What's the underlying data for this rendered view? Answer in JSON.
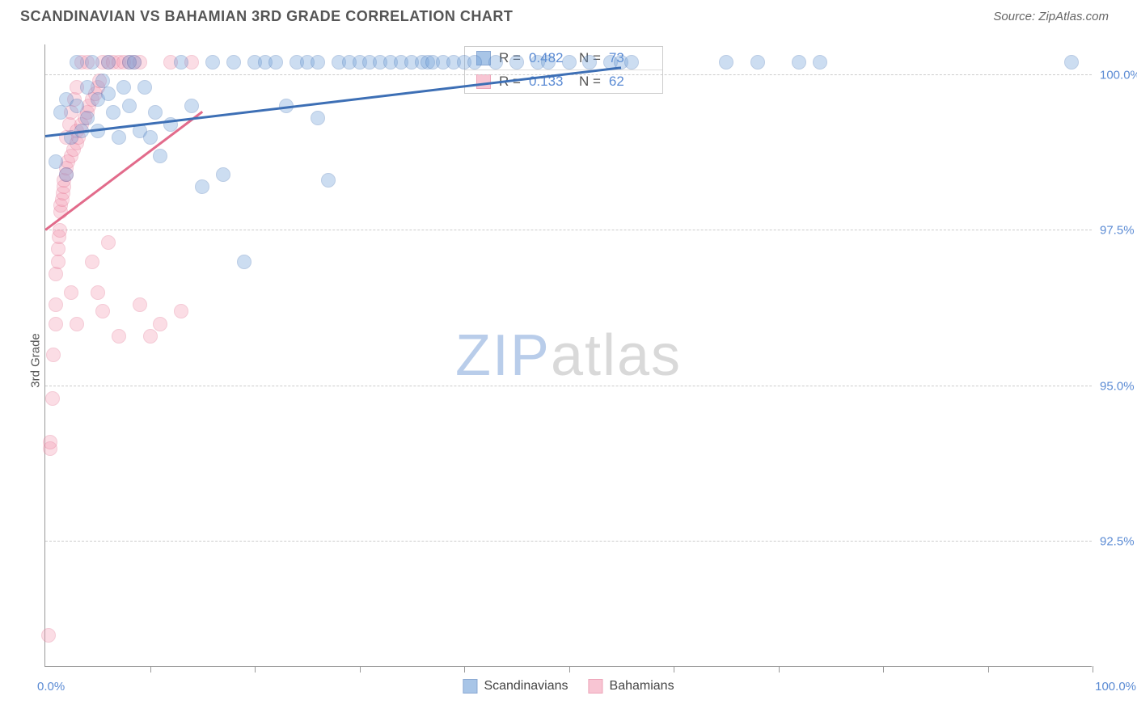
{
  "title": "SCANDINAVIAN VS BAHAMIAN 3RD GRADE CORRELATION CHART",
  "source_label": "Source: ",
  "source_value": "ZipAtlas.com",
  "ylabel": "3rd Grade",
  "watermark_a": "ZIP",
  "watermark_b": "atlas",
  "watermark_color_a": "#b9cdea",
  "watermark_color_b": "#d9d9d9",
  "chart": {
    "type": "scatter",
    "xlim": [
      0,
      100
    ],
    "ylim": [
      90.5,
      100.5
    ],
    "xaxis_min_label": "0.0%",
    "xaxis_max_label": "100.0%",
    "yticks": [
      92.5,
      95.0,
      97.5,
      100.0
    ],
    "ytick_labels": [
      "92.5%",
      "95.0%",
      "97.5%",
      "100.0%"
    ],
    "xticks": [
      10,
      20,
      30,
      40,
      50,
      60,
      70,
      80,
      90,
      100
    ],
    "grid_color": "#cccccc",
    "background": "#ffffff",
    "marker_radius": 9,
    "marker_opacity": 0.35,
    "series": [
      {
        "name": "Scandinavians",
        "label": "Scandinavians",
        "fill": "#6f9fd8",
        "stroke": "#3d6fb5",
        "R": "0.482",
        "N": "73",
        "trend": {
          "x1": 0,
          "y1": 99.0,
          "x2": 55,
          "y2": 100.1
        },
        "points": [
          [
            1,
            98.6
          ],
          [
            1.5,
            99.4
          ],
          [
            2,
            98.4
          ],
          [
            2,
            99.6
          ],
          [
            2.5,
            99.0
          ],
          [
            3,
            100.2
          ],
          [
            3,
            99.5
          ],
          [
            3.5,
            99.1
          ],
          [
            4,
            99.8
          ],
          [
            4,
            99.3
          ],
          [
            4.5,
            100.2
          ],
          [
            5,
            99.6
          ],
          [
            5,
            99.1
          ],
          [
            5.5,
            99.9
          ],
          [
            6,
            100.2
          ],
          [
            6,
            99.7
          ],
          [
            6.5,
            99.4
          ],
          [
            7,
            99.0
          ],
          [
            7.5,
            99.8
          ],
          [
            8,
            100.2
          ],
          [
            8,
            99.5
          ],
          [
            8.5,
            100.2
          ],
          [
            9,
            99.1
          ],
          [
            9.5,
            99.8
          ],
          [
            10,
            99.0
          ],
          [
            10.5,
            99.4
          ],
          [
            11,
            98.7
          ],
          [
            12,
            99.2
          ],
          [
            13,
            100.2
          ],
          [
            14,
            99.5
          ],
          [
            15,
            98.2
          ],
          [
            16,
            100.2
          ],
          [
            17,
            98.4
          ],
          [
            18,
            100.2
          ],
          [
            19,
            97.0
          ],
          [
            20,
            100.2
          ],
          [
            21,
            100.2
          ],
          [
            22,
            100.2
          ],
          [
            23,
            99.5
          ],
          [
            24,
            100.2
          ],
          [
            25,
            100.2
          ],
          [
            26,
            99.3
          ],
          [
            26,
            100.2
          ],
          [
            27,
            98.3
          ],
          [
            28,
            100.2
          ],
          [
            29,
            100.2
          ],
          [
            30,
            100.2
          ],
          [
            31,
            100.2
          ],
          [
            32,
            100.2
          ],
          [
            33,
            100.2
          ],
          [
            34,
            100.2
          ],
          [
            35,
            100.2
          ],
          [
            36,
            100.2
          ],
          [
            36.5,
            100.2
          ],
          [
            37,
            100.2
          ],
          [
            38,
            100.2
          ],
          [
            39,
            100.2
          ],
          [
            40,
            100.2
          ],
          [
            41,
            100.2
          ],
          [
            43,
            100.2
          ],
          [
            45,
            100.2
          ],
          [
            47,
            100.2
          ],
          [
            48,
            100.2
          ],
          [
            50,
            100.2
          ],
          [
            52,
            100.2
          ],
          [
            54,
            100.2
          ],
          [
            55,
            100.2
          ],
          [
            56,
            100.2
          ],
          [
            65,
            100.2
          ],
          [
            68,
            100.2
          ],
          [
            72,
            100.2
          ],
          [
            74,
            100.2
          ],
          [
            98,
            100.2
          ]
        ]
      },
      {
        "name": "Bahamians",
        "label": "Bahamians",
        "fill": "#f49fb6",
        "stroke": "#e26b8b",
        "R": "0.133",
        "N": "62",
        "trend": {
          "x1": 0,
          "y1": 97.5,
          "x2": 15,
          "y2": 99.4
        },
        "points": [
          [
            0.3,
            91.0
          ],
          [
            0.5,
            94.0
          ],
          [
            0.5,
            94.1
          ],
          [
            0.7,
            94.8
          ],
          [
            0.8,
            95.5
          ],
          [
            1,
            96.0
          ],
          [
            1,
            96.3
          ],
          [
            1,
            96.8
          ],
          [
            1.2,
            97.0
          ],
          [
            1.2,
            97.2
          ],
          [
            1.3,
            97.4
          ],
          [
            1.4,
            97.5
          ],
          [
            1.5,
            97.8
          ],
          [
            1.5,
            97.9
          ],
          [
            1.6,
            98.0
          ],
          [
            1.7,
            98.1
          ],
          [
            1.8,
            98.2
          ],
          [
            1.8,
            98.3
          ],
          [
            2,
            98.4
          ],
          [
            2,
            98.5
          ],
          [
            2,
            99.0
          ],
          [
            2.2,
            98.6
          ],
          [
            2.3,
            99.2
          ],
          [
            2.5,
            98.7
          ],
          [
            2.5,
            99.4
          ],
          [
            2.7,
            98.8
          ],
          [
            2.8,
            99.6
          ],
          [
            3,
            98.9
          ],
          [
            3,
            99.8
          ],
          [
            3,
            99.1
          ],
          [
            3.2,
            99.0
          ],
          [
            3.5,
            99.2
          ],
          [
            3.5,
            100.2
          ],
          [
            3.8,
            99.3
          ],
          [
            4,
            99.4
          ],
          [
            4,
            100.2
          ],
          [
            4.2,
            99.5
          ],
          [
            4.5,
            99.6
          ],
          [
            4.5,
            97.0
          ],
          [
            4.8,
            99.7
          ],
          [
            5,
            99.8
          ],
          [
            5,
            96.5
          ],
          [
            5.2,
            99.9
          ],
          [
            5.5,
            100.2
          ],
          [
            5.5,
            96.2
          ],
          [
            6,
            100.2
          ],
          [
            6,
            97.3
          ],
          [
            6.5,
            100.2
          ],
          [
            7,
            100.2
          ],
          [
            7,
            95.8
          ],
          [
            7.5,
            100.2
          ],
          [
            8,
            100.2
          ],
          [
            8.5,
            100.2
          ],
          [
            9,
            100.2
          ],
          [
            9,
            96.3
          ],
          [
            10,
            95.8
          ],
          [
            11,
            96.0
          ],
          [
            12,
            100.2
          ],
          [
            13,
            96.2
          ],
          [
            14,
            100.2
          ],
          [
            2.5,
            96.5
          ],
          [
            3,
            96.0
          ]
        ]
      }
    ],
    "stat_box": {
      "r_label": "R =",
      "n_label": "N ="
    },
    "legend": {
      "position": "bottom-center"
    }
  }
}
